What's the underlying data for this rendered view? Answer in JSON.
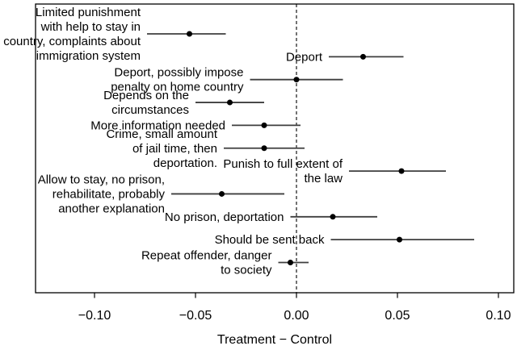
{
  "chart_data": {
    "type": "scatter",
    "variant": "forest-coefficient-plot",
    "title": "",
    "xlabel": "Treatment − Control",
    "xlim": [
      -0.1292,
      0.1076
    ],
    "x_ticks": [
      -0.1,
      -0.05,
      0.0,
      0.05,
      0.1
    ],
    "x_tick_labels": [
      "−0.10",
      "−0.05",
      "0.00",
      "0.05",
      "0.10"
    ],
    "reference_line": {
      "x": 0,
      "style": "dashed"
    },
    "grid": false,
    "legend": null,
    "points": [
      {
        "label_lines": [
          "Limited punishment",
          "with help to stay in",
          "country, complaints about",
          "immigration system"
        ],
        "estimate": -0.053,
        "ci_lower": -0.074,
        "ci_upper": -0.035
      },
      {
        "label_lines": [
          "Deport"
        ],
        "estimate": 0.033,
        "ci_lower": 0.016,
        "ci_upper": 0.053
      },
      {
        "label_lines": [
          "Deport, possibly impose",
          "penalty on home country"
        ],
        "estimate": 0.0,
        "ci_lower": -0.023,
        "ci_upper": 0.023
      },
      {
        "label_lines": [
          "Depends on the",
          "circumstances"
        ],
        "estimate": -0.033,
        "ci_lower": -0.05,
        "ci_upper": -0.016
      },
      {
        "label_lines": [
          "More information needed"
        ],
        "estimate": -0.016,
        "ci_lower": -0.032,
        "ci_upper": 0.002
      },
      {
        "label_lines": [
          "Crime, small amount",
          "of jail time, then",
          "deportation."
        ],
        "estimate": -0.016,
        "ci_lower": -0.036,
        "ci_upper": 0.004
      },
      {
        "label_lines": [
          "Punish to full extent of",
          "the law"
        ],
        "estimate": 0.052,
        "ci_lower": 0.026,
        "ci_upper": 0.074
      },
      {
        "label_lines": [
          "Allow to stay, no prison,",
          "rehabilitate, probably",
          "another explanation"
        ],
        "estimate": -0.037,
        "ci_lower": -0.062,
        "ci_upper": -0.006
      },
      {
        "label_lines": [
          "No prison, deportation"
        ],
        "estimate": 0.018,
        "ci_lower": -0.003,
        "ci_upper": 0.04
      },
      {
        "label_lines": [
          "Should be sent back"
        ],
        "estimate": 0.051,
        "ci_lower": 0.017,
        "ci_upper": 0.088
      },
      {
        "label_lines": [
          "Repeat offender, danger",
          "to society"
        ],
        "estimate": -0.003,
        "ci_lower": -0.009,
        "ci_upper": 0.006
      }
    ],
    "colors": {
      "point": "#000000",
      "ci_line": "#3e3e3e",
      "axis": "#000000",
      "text": "#000000",
      "background": "#ffffff"
    }
  }
}
